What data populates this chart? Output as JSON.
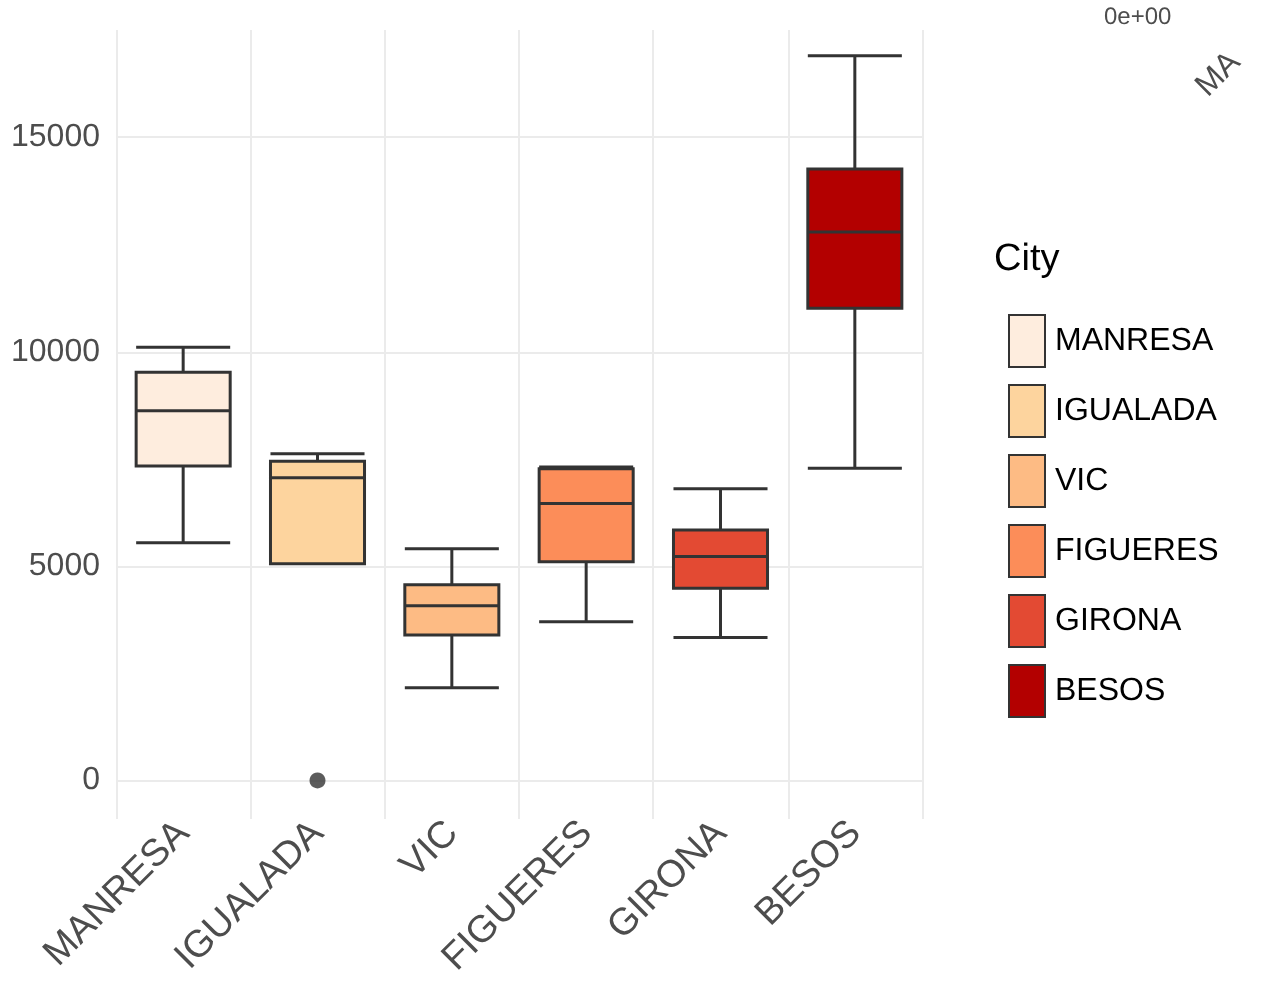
{
  "chart_data": {
    "type": "box",
    "categories": [
      "MANRESA",
      "IGUALADA",
      "VIC",
      "FIGUERES",
      "GIRONA",
      "BESOS"
    ],
    "series": [
      {
        "name": "MANRESA",
        "color": "#feedde",
        "boxes": [
          {
            "low": 5540,
            "q1": 7330,
            "median": 8620,
            "q3": 9520,
            "high": 10100
          },
          null,
          null,
          null,
          null,
          null
        ]
      },
      {
        "name": "IGUALADA",
        "color": "#fdd49e",
        "boxes": [
          null,
          {
            "low": 5050,
            "q1": 5050,
            "median": 7060,
            "q3": 7440,
            "high": 7620,
            "outliers": [
              0
            ]
          },
          null,
          null,
          null,
          null
        ]
      },
      {
        "name": "VIC",
        "color": "#fdbb84",
        "boxes": [
          null,
          null,
          {
            "low": 2160,
            "q1": 3390,
            "median": 4070,
            "q3": 4560,
            "high": 5400
          },
          null,
          null,
          null
        ]
      },
      {
        "name": "FIGUERES",
        "color": "#fc8d59",
        "boxes": [
          null,
          null,
          null,
          {
            "low": 3700,
            "q1": 5100,
            "median": 6460,
            "q3": 7270,
            "high": 7310
          },
          null,
          null
        ]
      },
      {
        "name": "GIRONA",
        "color": "#e34a33",
        "boxes": [
          null,
          null,
          null,
          null,
          {
            "low": 3330,
            "q1": 4480,
            "median": 5220,
            "q3": 5840,
            "high": 6800
          },
          null
        ]
      },
      {
        "name": "BESOS",
        "color": "#b30000",
        "boxes": [
          null,
          null,
          null,
          null,
          null,
          {
            "low": 7280,
            "q1": 11010,
            "median": 12790,
            "q3": 14260,
            "high": 16900
          }
        ]
      }
    ],
    "ylim": [
      -900,
      17500
    ],
    "yticks": [
      0,
      5000,
      10000,
      15000
    ],
    "grid": true,
    "legend": "right",
    "legend_title": "City",
    "annotations": [
      "0e+00",
      "MA"
    ]
  }
}
